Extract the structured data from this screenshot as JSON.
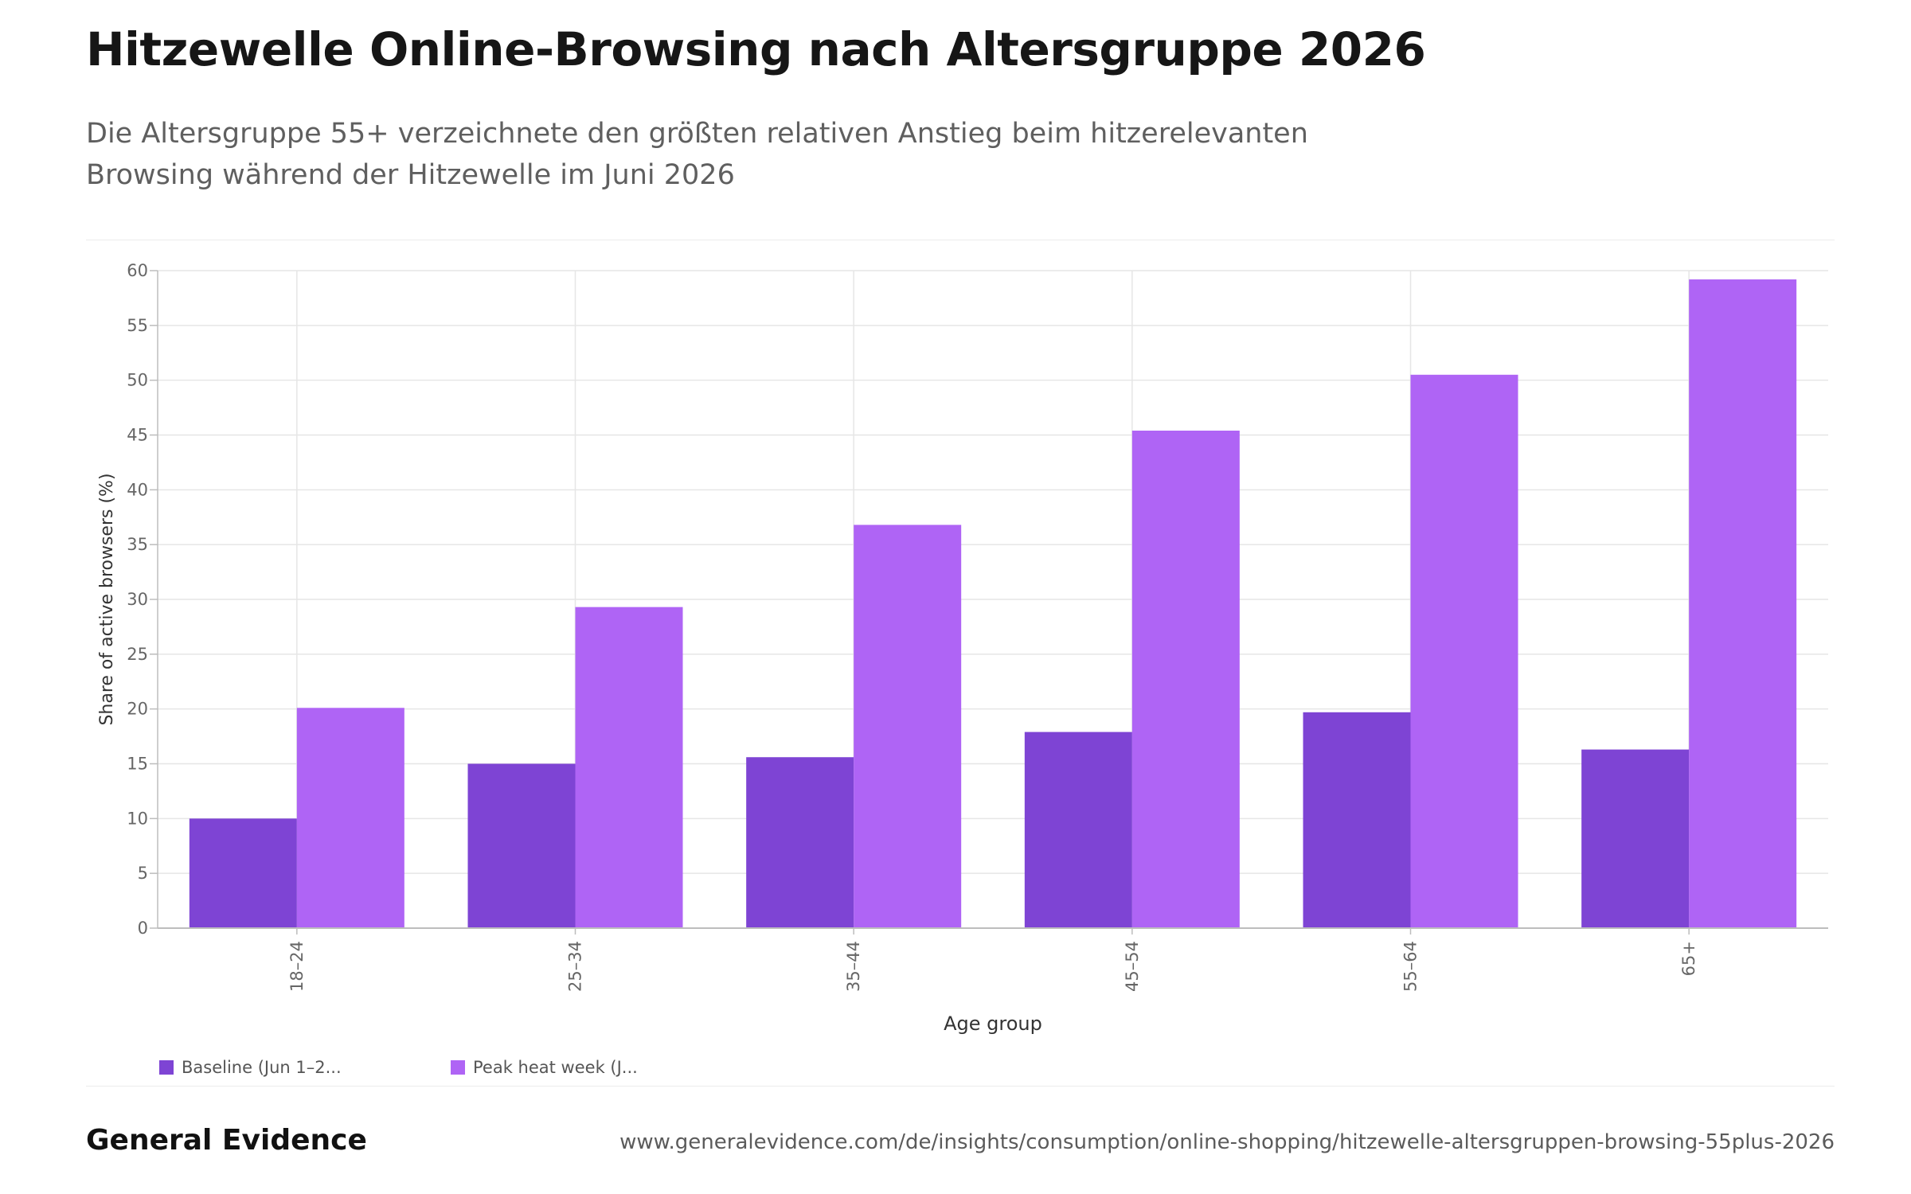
{
  "header": {
    "title": "Hitzewelle Online-Browsing nach Altersgruppe 2026",
    "subtitle": "Die Altersgruppe 55+ verzeichnete den größten relativen Anstieg beim hitzerelevanten Browsing während der Hitzewelle im Juni 2026"
  },
  "legend": {
    "baseline_label": "Baseline (Jun 1–2...",
    "peak_label": "Peak heat week (J..."
  },
  "footer": {
    "brand": "General Evidence",
    "url": "www.generalevidence.com/de/insights/consumption/online-shopping/hitzewelle-altersgruppen-browsing-55plus-2026"
  },
  "colors": {
    "baseline": "#7e44d4",
    "peak": "#af64f5",
    "grid": "#e6e6e6",
    "axis": "#bdbdbd",
    "tick_text": "#666666"
  },
  "chart_data": {
    "type": "bar",
    "categories": [
      "18–24",
      "25–34",
      "35–44",
      "45–54",
      "55–64",
      "65+"
    ],
    "series": [
      {
        "name": "Baseline (Jun 1–2...",
        "values": [
          10.0,
          15.0,
          15.6,
          17.9,
          19.7,
          16.3
        ]
      },
      {
        "name": "Peak heat week (J...",
        "values": [
          20.1,
          29.3,
          36.8,
          45.4,
          50.5,
          59.2
        ]
      }
    ],
    "xlabel": "Age group",
    "ylabel": "Share of active browsers (%)",
    "ylim": [
      0,
      60
    ],
    "yticks": [
      0,
      5,
      10,
      15,
      20,
      25,
      30,
      35,
      40,
      45,
      50,
      55,
      60
    ],
    "grid": true,
    "legend_position": "bottom-left"
  }
}
